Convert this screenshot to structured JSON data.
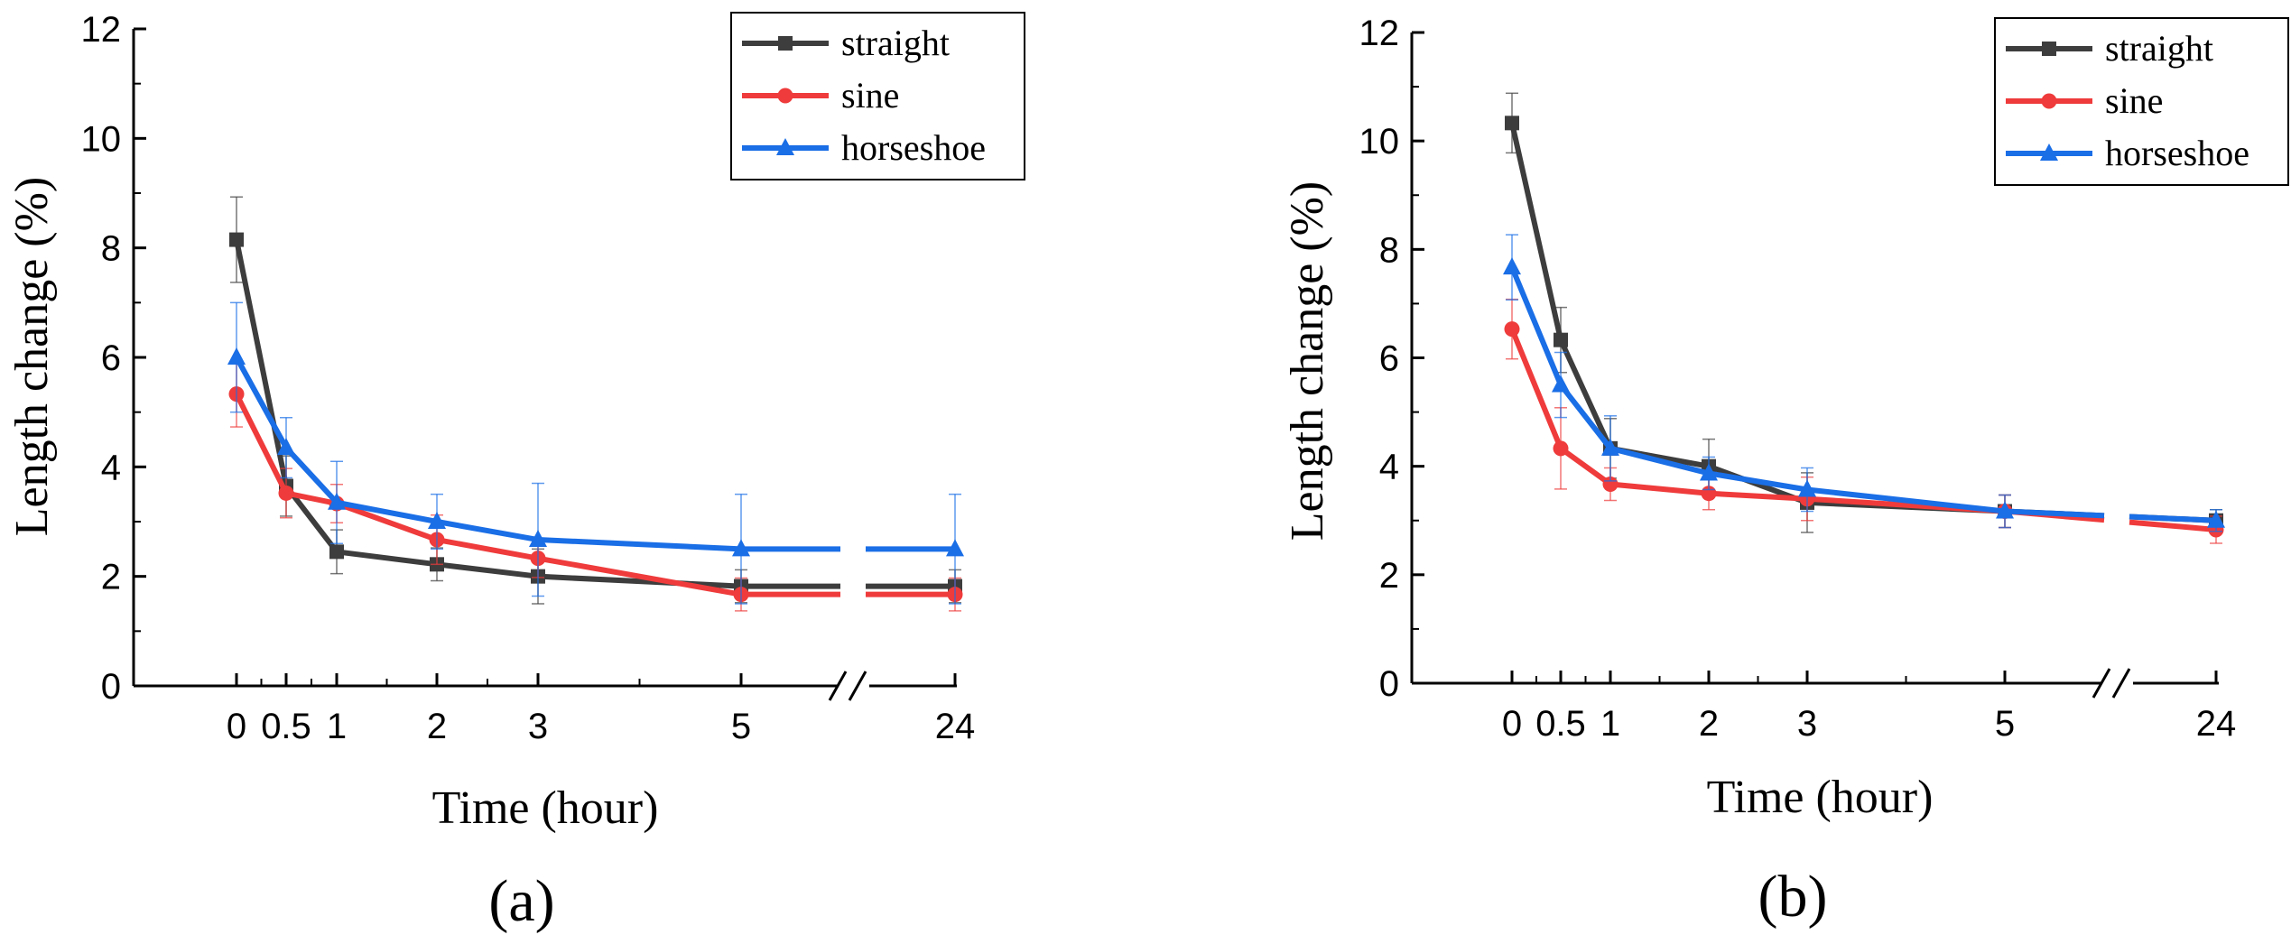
{
  "chart_data": [
    {
      "type": "line",
      "panel_label": "(a)",
      "xlabel": "Time (hour)",
      "ylabel": "Length change (%)",
      "ylim": [
        0,
        12
      ],
      "y_ticks": [
        "0",
        "2",
        "4",
        "6",
        "8",
        "10",
        "12"
      ],
      "x_tick_labels": [
        "0",
        "0.5",
        "1",
        "2",
        "3",
        "5",
        "24"
      ],
      "x_axis_break": "between 5 and 24",
      "legend_position": "top-right",
      "series": [
        {
          "name": "straight",
          "color": "#3d3d3d",
          "marker": "square",
          "values": [
            8.15,
            3.65,
            2.45,
            2.22,
            2.0,
            1.82,
            1.82
          ],
          "errors": [
            0.78,
            0.55,
            0.4,
            0.3,
            0.5,
            0.3,
            0.3
          ]
        },
        {
          "name": "sine",
          "color": "#ef3b3b",
          "marker": "circle",
          "values": [
            5.33,
            3.52,
            3.33,
            2.67,
            2.33,
            1.67,
            1.67
          ],
          "errors": [
            0.6,
            0.45,
            0.35,
            0.45,
            0.35,
            0.3,
            0.3
          ]
        },
        {
          "name": "horseshoe",
          "color": "#1a6ee6",
          "marker": "triangle",
          "values": [
            6.0,
            4.35,
            3.35,
            3.0,
            2.67,
            2.5,
            2.5
          ],
          "errors": [
            1.0,
            0.55,
            0.75,
            0.5,
            1.03,
            1.0,
            1.0
          ]
        }
      ]
    },
    {
      "type": "line",
      "panel_label": "(b)",
      "xlabel": "Time (hour)",
      "ylabel": "Length change (%)",
      "ylim": [
        0,
        12
      ],
      "y_ticks": [
        "0",
        "2",
        "4",
        "6",
        "8",
        "10",
        "12"
      ],
      "x_tick_labels": [
        "0",
        "0.5",
        "1",
        "2",
        "3",
        "5",
        "24"
      ],
      "x_axis_break": "between 5 and 24",
      "legend_position": "top-right",
      "series": [
        {
          "name": "straight",
          "color": "#3d3d3d",
          "marker": "square",
          "values": [
            10.33,
            6.33,
            4.33,
            4.0,
            3.33,
            3.17,
            3.0
          ],
          "errors": [
            0.55,
            0.6,
            0.55,
            0.5,
            0.55,
            0.3,
            0.2
          ]
        },
        {
          "name": "sine",
          "color": "#ef3b3b",
          "marker": "circle",
          "values": [
            6.53,
            4.33,
            3.67,
            3.5,
            3.4,
            3.17,
            2.83
          ],
          "errors": [
            0.55,
            0.75,
            0.3,
            0.3,
            0.4,
            0.3,
            0.25
          ]
        },
        {
          "name": "horseshoe",
          "color": "#1a6ee6",
          "marker": "triangle",
          "values": [
            7.67,
            5.5,
            4.33,
            3.87,
            3.57,
            3.17,
            3.0
          ],
          "errors": [
            0.6,
            0.6,
            0.6,
            0.3,
            0.4,
            0.3,
            0.2
          ]
        }
      ]
    }
  ]
}
